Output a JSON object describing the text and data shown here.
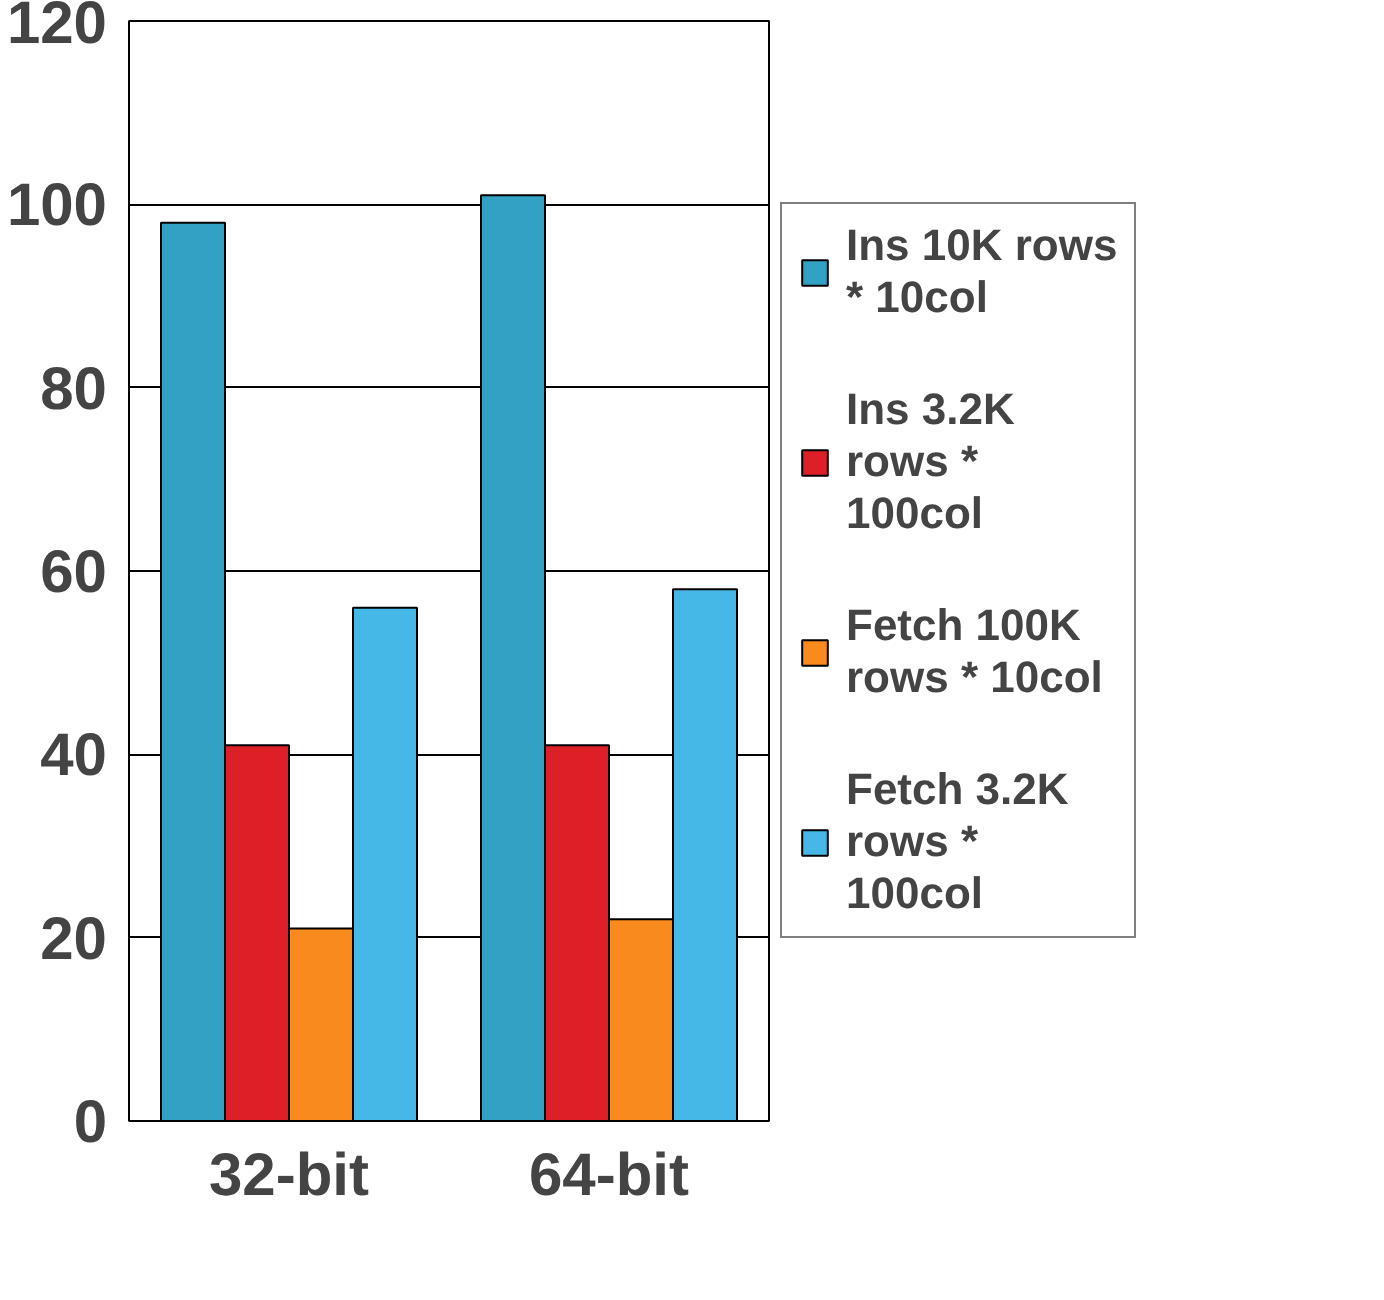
{
  "chart_data": {
    "type": "bar",
    "categories": [
      "32-bit",
      "64-bit"
    ],
    "series": [
      {
        "name": "Ins 10K rows * 10col",
        "color": "#31a2c4",
        "values": [
          98,
          101
        ]
      },
      {
        "name": "Ins 3.2K rows * 100col",
        "color": "#dd2027",
        "values": [
          41,
          41
        ]
      },
      {
        "name": "Fetch 100K rows * 10col",
        "color": "#f98a1d",
        "values": [
          21,
          22
        ]
      },
      {
        "name": "Fetch 3.2K rows * 100col",
        "color": "#46b8e8",
        "values": [
          56,
          58
        ]
      }
    ],
    "ylim": [
      0,
      120
    ],
    "yticks": [
      0,
      20,
      40,
      60,
      80,
      100,
      120
    ],
    "grid": "y",
    "legend": "right"
  }
}
